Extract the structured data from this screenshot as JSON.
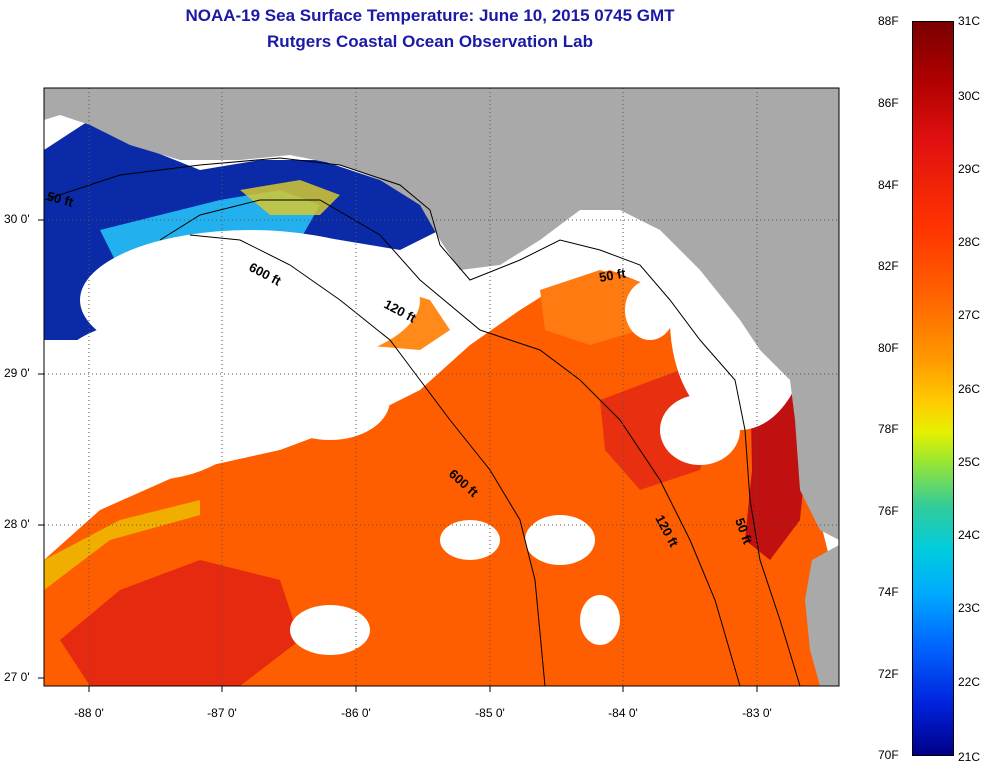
{
  "header": {
    "title": "NOAA-19 Sea Surface Temperature:  June 10, 2015 0745 GMT",
    "subtitle": "Rutgers Coastal Ocean Observation Lab"
  },
  "axes": {
    "lat_ticks": [
      "30 0'",
      "29 0'",
      "28 0'",
      "27 0'"
    ],
    "lon_ticks": [
      "-88 0'",
      "-87 0'",
      "-86 0'",
      "-85 0'",
      "-84 0'",
      "-83 0'"
    ]
  },
  "contours": {
    "shallow": "50 ft",
    "mid": "120 ft",
    "deep": "600 ft",
    "west_50": "50 ft",
    "north_50": "50 ft",
    "north_120": "120 ft",
    "north_600": "600 ft",
    "south_600": "600 ft",
    "south_120": "120 ft",
    "south_50": "50 ft"
  },
  "colorbar": {
    "fahrenheit": [
      "88F",
      "86F",
      "84F",
      "82F",
      "80F",
      "78F",
      "76F",
      "74F",
      "72F",
      "70F"
    ],
    "celsius": [
      "31C",
      "30C",
      "29C",
      "28C",
      "27C",
      "26C",
      "25C",
      "24C",
      "23C",
      "22C",
      "21C"
    ]
  },
  "colors": {
    "title": "#1a1aa6",
    "land": "#a9a9a9",
    "cloud": "#ffffff",
    "warm": "#ff5a00",
    "hot": "#c00000",
    "cool": "#00aaff",
    "cold": "#0a1aa0"
  }
}
